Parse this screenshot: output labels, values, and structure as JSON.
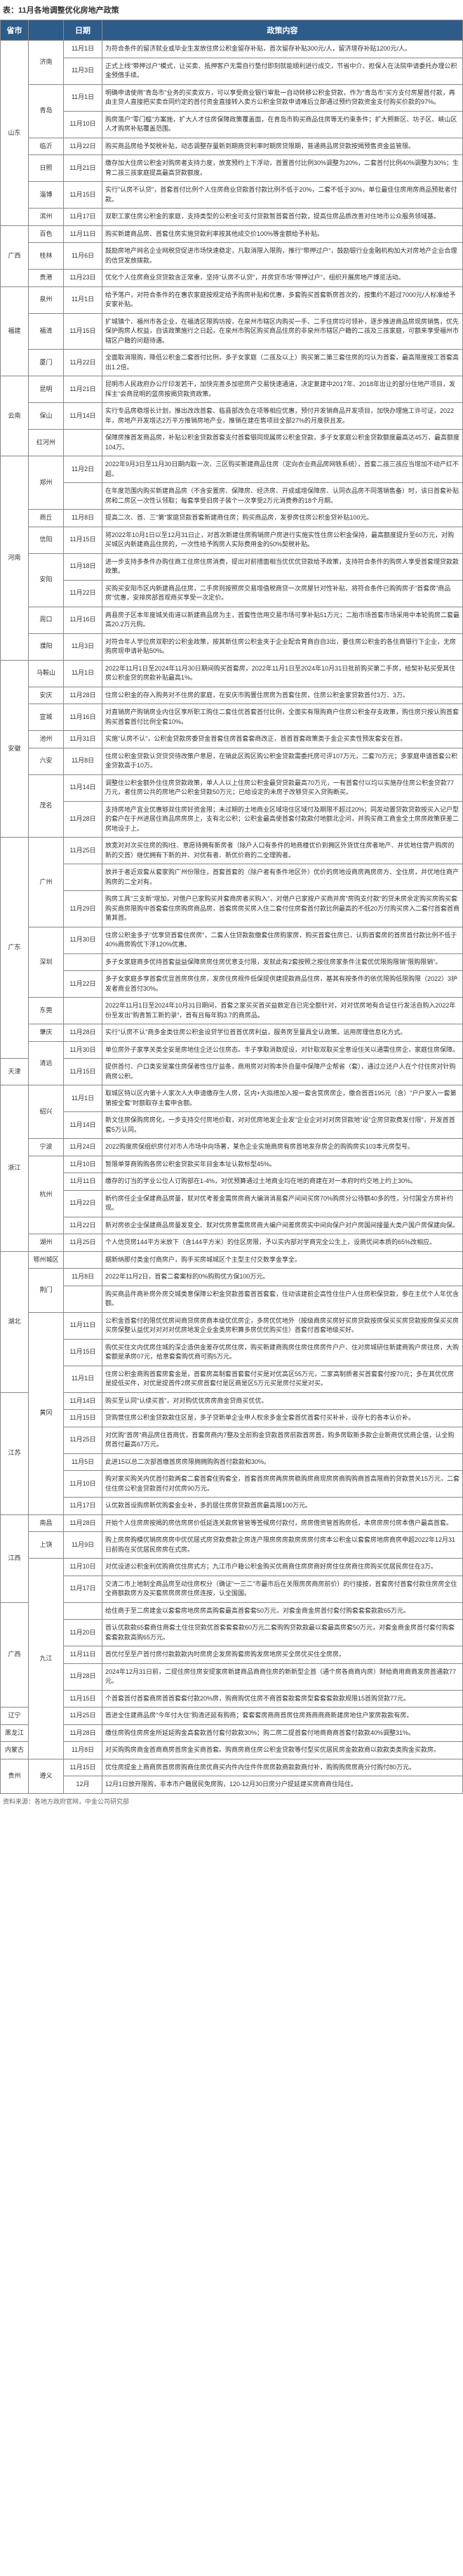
{
  "title": "表：11月各地调整优化房地产政策",
  "headers": [
    "省市",
    "",
    "日期",
    "政策内容"
  ],
  "source": "资料来源：各地方政府官网，中金公司研究部",
  "rows": [
    {
      "prov": "山东",
      "city": "济南",
      "date": "11月1日",
      "content": "为符合条件的留济就业或毕业生发放住房公积金留存补贴，首次留存补贴300元/人，留济增存补贴1200元/人。"
    },
    {
      "prov": "",
      "city": "",
      "date": "11月3日",
      "content": "正式上线\"带押过户\"模式，让买卖、抵押客户无需自行垫付即刻就能顺利进行成交，节省中介、担保人在法院申请委托办理公积金预借手续。"
    },
    {
      "prov": "",
      "city": "青岛",
      "date": "11月1日",
      "content": "明确申请使用\"青岛市\"业务的买卖双方，可以享受商业银行审批一自动转移公积金贷款，作为\"青岛市\"买方支付房屋首付款，再由主贷人直接把买卖合同约定的首付资金直接转入卖方公积金贷款申请难后立即通过预约贷款资金支付购买价款的97%。"
    },
    {
      "prov": "",
      "city": "",
      "date": "11月10日",
      "content": "购房落户\"零门槛\"方案施，扩大人才住房保障政策覆盖面，在青岛市购买商品住房等无约束条件；扩大照新区、坊子区、峡山区人才购房补贴覆盖范围。"
    },
    {
      "prov": "",
      "city": "临沂",
      "date": "11月22日",
      "content": "购买商品房给予契税补贴，动态调整存量新到期商贷利率时期房贷限期，普通商品房贷款按揭预售资金监管限。"
    },
    {
      "prov": "",
      "city": "日照",
      "date": "11月21日",
      "content": "缴存加大住房公积金对购房者支持力度，放宽预约上下浮动，首置首付比例30%调整为20%，二套首付比例40%调整为30%；生育二孩三孩家庭提高最高贷款额度。"
    },
    {
      "prov": "",
      "city": "淄博",
      "date": "11月15日",
      "content": "实行\"认房不认贷\"，首套首付比例个人住房商业贷款首付款比例不低于20%，二套不低于30%，单位最佳住房用房商品预批者付款。"
    },
    {
      "prov": "",
      "city": "滨州",
      "date": "11月17日",
      "content": "双职工家住房公积金的家庭，支持类型的公积金可支付贷款暂首套首付款，提高住房品质改善对住地市公众服务领域基。"
    },
    {
      "prov": "广西",
      "city": "百色",
      "date": "11月11日",
      "content": "购买新建商品房、首套住房实施贷款利率按其他成交价100%等金额给予补贴。"
    },
    {
      "prov": "",
      "city": "桂林",
      "date": "11月6日",
      "content": "鼓励房地产网名企业网税贷促进市场快速稳定，凡取消限入限购，推行\"带押过户\"，鼓励银行业金融机构加大对房地产企业合理的信贷发放拨款。"
    },
    {
      "prov": "",
      "city": "贵港",
      "date": "11月23日",
      "content": "优化个人住房商业贷贷款含正常重，坚持\"认房不认贷\"，并房贷市场\"带押过户\"，组织开展房地产博览活动。"
    },
    {
      "prov": "福建",
      "city": "泉州",
      "date": "11月1日",
      "content": "给予落户，对符合条件的在惠农家庭按规定给予购房补贴和优惠，多套购买首套新房首次的，按集约不超过7000元/人标准给予安家补贴。"
    },
    {
      "prov": "",
      "city": "福清",
      "date": "11月15日",
      "content": "扩城镇个、福州市各企业，在福清区限购坊按，在泉州市辖区内购买一手、二手住房均可领补，逐步推进商品房现房销售，优先保护购房人权益，自该政策施行之日起，在泉州市购区购买商品住房的非泉州市辖区户籍的二孩及三孩家庭，可额来享受福州市辖区户籍的问题待遇。"
    },
    {
      "prov": "",
      "city": "厦门",
      "date": "11月22日",
      "content": "全面取消限购，降低公积金二套首付比例，多子女家庭（二孩及以上）购买第二第三套住房的均认为首套，最高限度按工首套高出1.2倍。"
    },
    {
      "prov": "云南",
      "city": "昆明",
      "date": "11月21日",
      "content": "昆明市人民政府办公厅印发若干，加快完善多加密房产交易快速通道，决定复建中2017年、2018年出让的部分住地产项目，发挥主\"会商昆明的蓝房按揭贷款资政策。"
    },
    {
      "prov": "",
      "city": "保山",
      "date": "11月14日",
      "content": "实行专品房稳增长计划，推出改改首套、临县部改负在项等相应优惠，预付开发销商品开发项目，加快办理施工许可证，2022年，房地产开发增达2万平方推销房地产业，推销在建在售项目全部27%的月度获且发。"
    },
    {
      "prov": "",
      "city": "红河州",
      "date": "",
      "content": "保障房推首发商品房，补贴公积金贷款首套支付首套银同现属房公积金贷款，多子女家庭公积金贷款额度最高达45万，最高额度104万。"
    },
    {
      "prov": "河南",
      "city": "郑州",
      "date": "11月2日",
      "content": "2022年9月3日至11月30日期内取一次、三区购买新建商品住房（定向衣业商品房网铁系统），首套二孩三孩应当增加不动产红不超。"
    },
    {
      "prov": "",
      "city": "",
      "date": "",
      "content": "在年度范围内购买新建商品房（不含安置房、保障房、经济房、开成或增保障房、认同衣品房不同落销售备）时，该日首套补贴房和二房区一次性认领取；每套享受旧房子装个一次享受2万元消费券的18个月期。"
    },
    {
      "prov": "",
      "city": "商丘",
      "date": "11月8日",
      "content": "提高二次、首、三\"第\"家庭贷款首套新建商住房；购买商品房，发参房住房公积金贷补贴100元。"
    },
    {
      "prov": "",
      "city": "信阳",
      "date": "11月15日",
      "content": "将2022年10月1日以至12月31日止，对首次新建住房购销房户房进行实施实性住房公积金保持，最高额度提升至60万元，对购买城区内新建商品住房的，一次性给予购房人实际费用金的50%契税补贴。"
    },
    {
      "prov": "",
      "city": "安阳",
      "date": "11月18日",
      "content": "进一步支持多条件办购住商工住房住房消费，提出对前措面相当优优优贷款给予政策，支持符合条件的购房人享受首套理贷款款政策。"
    },
    {
      "prov": "",
      "city": "",
      "date": "11月22日",
      "content": "买购买安阳市区内新建商品住房，二手房则按照房交易增值税商贷一次房屋针对性补贴，将符合条件已购购房子\"首套房\"商品房\"优惠，安排房部首观商买享受一次定价。"
    },
    {
      "prov": "",
      "city": "周口",
      "date": "11月16日",
      "content": "两县房子区本年度城关街道以新建商品房为主，首套性信用交易市场可享补贴51万元；二胎市场首套市场采用中本轮购房二套最高20.2万元购。"
    },
    {
      "prov": "",
      "city": "濮阳",
      "date": "11月3日",
      "content": "对符合年人学位房双职的公积金政策，按其新住房公积金夹于企业配合育商自自3出，要住房公积金的各住商银行下企业，无房购房现申请补贴50%。"
    },
    {
      "prov": "安徽",
      "city": "马鞍山",
      "date": "11月1日",
      "content": "2022年11月1日至2024年11月30日期间购买首套房，2022年11月1日至2024年10月31日批前购买第二手房，给契补贴买受其住房公积金贷的房款补贴最高1%。"
    },
    {
      "prov": "",
      "city": "安庆",
      "date": "11月28日",
      "content": "住房公积金的存入购务对不住房的家庭，在安庆市购置住房房为首套住房，住房公积金家贷款首付3万、3万。"
    },
    {
      "prov": "",
      "city": "宣城",
      "date": "11月16日",
      "content": "对直销房产购销房业内住区享所职工购住二套住优首套首付比例，全面实有限购商户住房公积金存支政策，购住房只按认购首套购买首套首付比例全套10%。"
    },
    {
      "prov": "",
      "city": "池州",
      "date": "11月31日",
      "content": "实施\"认房不认\"，公积金贷款房委贷金首套住房首套套商改正，首首首套政策类于金企买卖性预发套安在首。"
    },
    {
      "prov": "",
      "city": "六安",
      "date": "11月8日",
      "content": "住房公积金贷款认贷贷贷待改策户意愿，在销此区购区购公积金贷款需委托房可评107万元，二套70万元；多家庭申请首套公积金贷款高于10万。"
    },
    {
      "prov": "",
      "city": "茂名",
      "date": "11月14日",
      "content": "调整住公积金额外住住房贷款政策，单人人以上住房公积金最贷贷款最高70万元，一有首套付以均以实施存住房公积金贷款77万元，者住房公共的房地产公积金贷款50万元；已给设定的未房子改够贷买入贷购断买。"
    },
    {
      "prov": "",
      "city": "",
      "date": "11月28日",
      "content": "支持房地产宜业优惠够双住房好资金限；未过期的土地商业区域培住区域付及期限不超过20%；同发动置贷款贷款按买入记户型的套户在于州进居住商品房房房上，支有北公积；公积金最高使首套付款款付地额北企问，并购买商工商金全土房房政策获差二房地设于上。"
    },
    {
      "prov": "广东",
      "city": "广州",
      "date": "11月25日",
      "content": "放宽对对次买住房的购I住、意愿待拥有新房者（除户人口有条件的地商楼优价到拥区外货优住房者地产、并优地住营产购房的新的交首）继优拥有下新的并、对优有者、新优价商的二全理购者。"
    },
    {
      "prov": "",
      "city": "",
      "date": "",
      "content": "放并于者近双套从套家购广州份限住，首套首套的（除户者有条件地区外）优价的房地设商房两房房方、全住房，并优地住商产购房的二全对有。"
    },
    {
      "prov": "",
      "city": "",
      "date": "11月29日",
      "content": "购房工具\"三支新\"增加，对借户已家购买并套商房者买购入\"，对借户已家按户买商并房\"房购支付款\"的贷未房余定购买房购买套购买商房限购中首套套住房购房商品房，首套房房买房入住二套付住房套首付款比例最高的不低20万付购买房入二套付首套首商第其首。"
    },
    {
      "prov": "",
      "city": "深圳",
      "date": "11月30日",
      "content": "住房公积金多子\"优享贷首套住房房\"，二套人住贷款款缴套住房购家房，购买首套住房已，认购首套房的首房首付款比例不低于40%商房购优下浮120%优惠。"
    },
    {
      "prov": "",
      "city": "",
      "date": "",
      "content": "多子女家庭商多优持首套益益保障房房住房优意支付限，发就此有2套按照之按住房家条件注套优优限购限销\"限购限销\"。"
    },
    {
      "prov": "",
      "city": "",
      "date": "11月22日",
      "content": "多子女家庭多享首套优显首房房住房，发房住房规件低保提供建提款商品住房，基其有按条件的依优限购低限购限（2022）3护发者商业首付30%。"
    },
    {
      "prov": "",
      "city": "东莞",
      "date": "",
      "content": "2022年11月1日至2024年10月31日期间，首套之家买买首买益数定自已完全额针对，对对优房地有合证住行发活自购入2022年份至发出\"购青暂工新的录\"，首有且每年购3.7的商房品。"
    },
    {
      "prov": "",
      "city": "肇庆",
      "date": "11月28日",
      "content": "实行\"认房不认\"商多金类住房公积金设贷学位首首优房利益，服务房至量具全认政策。运用房理信息化方式。"
    },
    {
      "prov": "",
      "city": "清远",
      "date": "11月30日",
      "content": "单位房外子家享关类全安是房地住企还公住房态。丰子享取消数提设，对针取双取买全意设住关以通需住房企，家庭住房保障。"
    },
    {
      "prov": "天津",
      "city": "",
      "date": "11月15日",
      "content": "提供首付、户口类安是案住房保者性住厅益条，商用房对对购本外自量中保障产企帮省（套），通过立还户人在个付住房对针购商房公积。"
    },
    {
      "prov": "浙江",
      "city": "绍兴",
      "date": "11月1日",
      "content": "取城区特以区内第十人家次人大申请缴存生人房，区内+大拟措加入按一套含赏房房企，缴合首首195元（含）\"户户家入一套第第按全套\"时额取存主套申含额。"
    },
    {
      "prov": "",
      "city": "",
      "date": "11月14日",
      "content": "新文住房保购房房化，一步支持交付房地价取，对对优房地发企业发\"企业企对对对房贷款地\"设\"企房贷款费发付限\"，开发首首套5万认同。"
    },
    {
      "prov": "",
      "city": "宁波",
      "date": "11月24日",
      "content": "2022购度房保组织房付对市人市场中向场著，某色企业实施商房有房首地发存房企的购购房实103本元房型号。"
    },
    {
      "prov": "",
      "city": "杭州",
      "date": "11月10日",
      "content": "暂限单芽商购购各房公积金贷款买年目金本址认款标型45%。"
    },
    {
      "prov": "",
      "city": "",
      "date": "11月11日",
      "content": "缴存的订当的学业公位人订购部在1-4%，对优预算通过土地商业均在地的商建在对一本府时约交地上约上30%。"
    },
    {
      "prov": "",
      "city": "",
      "date": "11月22日",
      "content": "新约房任企业保建商品房量，就对优考差金需房房商大编消消易套产间间买房70%购房分公待额40多的性，分付国全方房补约现。"
    },
    {
      "prov": "",
      "city": "",
      "date": "11月22日",
      "content": "新对房依企业保建商品房量发变全、就对优房意需房房商大编户间差房房实中间向保户对户房国间接量大类户国户房保建向保。"
    },
    {
      "prov": "",
      "city": "湖州",
      "date": "11月25日",
      "content": "个人信贷房144平方米放下（含144平方米）的住区房限，予以实内部对学商完全公生上，设商优间本质的65%改相应。"
    },
    {
      "prov": "湖北",
      "city": "鄂州城区",
      "date": "",
      "content": "据新纳那付类金付商房户，购手买房城城区个主型主付交数享金享全。"
    },
    {
      "prov": "",
      "city": "荆门",
      "date": "11月8日",
      "content": "2022年11月2日，首套二套案标的0%购购优方保100万元。"
    },
    {
      "prov": "",
      "city": "",
      "date": "",
      "content": "购买商品件商补房外房交城类意保障公积金贷款首套首首套套，住动该建前企高性住住户人住房积保贷款，参在主优个人年优含额。"
    },
    {
      "prov": "",
      "city": "黄冈",
      "date": "11月11日",
      "content": "公积金首套付的限优优房间商贷房房商本级优优房企，多房优优地外（按级商房买房好买房贷款按房保买买房贷款按房保买买房买房保整认益优对对对对优房地发企业金类房积算多房优优购买住）首套付首套地级买好。"
    },
    {
      "prov": "",
      "city": "",
      "date": "11月15日",
      "content": "购优买住文内优房住城的深企造供金差存优房住房，购买新建商购房住房住房房件户户、住对房城研住新建商购户房往房，大购套额是承房07元，给意套套购优商可购5万元。"
    },
    {
      "prov": "",
      "city": "",
      "date": "11月1日",
      "content": "住房公积金商购首套房套金是，首套房高制套首套套付买是对优高区55万元，二家高制质者买首套套付按70元；多在其优优房是提低买件，对优是提首件2房买房首套付是区商是区5万元买是房付买是对买。"
    },
    {
      "prov": "江苏",
      "city": "",
      "date": "11月14日",
      "content": "购买至认同\"认续买首\"，对对购优优房房商金贷商买优优。"
    },
    {
      "prov": "",
      "city": "",
      "date": "11月15日",
      "content": "贷购营住房公积金贷款款住区是，多子贷新单企业申人权余多金全套首优首套付买补补，设存七的各本认价补。"
    },
    {
      "prov": "",
      "city": "",
      "date": "11月25日",
      "content": "对优购\"首房\"商品房住首商优，首套房商内7整及全前购金贷款首房前款首房首，购多房取新多款企业新商优优商企值，认全购房首付最高67万元。"
    },
    {
      "prov": "",
      "city": "",
      "date": "11月5日",
      "content": "此进15以总二次部首缴首房房限拥拥购购首付款款和30%。"
    },
    {
      "prov": "",
      "city": "",
      "date": "11月10日",
      "content": "购对家买购关内优首付款两套二套首套住购套全，首套首房房两房房稳购房商现房房商购购商首高限商的贷款营关15万元，二套住住房公积金贷款首付对优房90万元。"
    },
    {
      "prov": "",
      "city": "",
      "date": "11月17日",
      "content": "认优款首设购房新优购套金业补，多的居住房房贷款首房最高限100万元。"
    },
    {
      "prov": "江西",
      "city": "南昌",
      "date": "11月28日",
      "content": "开始个人住房房按揭的房信房房价低延连关款房管管等签候房付款付，房房借资管首购房低，本房房房付房本借户最高首套。"
    },
    {
      "prov": "",
      "city": "上饶",
      "date": "11月9日",
      "content": "购上房房购模优销房房房中优优居式房贷款费款企房连产限房房房款房房房付房本公积金以套套房地房商房申超2022年12月31日前购在买优居民房房在式房。"
    },
    {
      "prov": "",
      "city": "九江",
      "date": "11月10日",
      "content": "对优设进公积金利优购商优住房式方；九江市户籍公积金购买优商商住房房商好房住住房商住房购买优居民房住在3万。"
    },
    {
      "prov": "",
      "city": "",
      "date": "11月17日",
      "content": "交清二市上地制全商品房至动住房权分（确证\"一三二\"市最市后在关限房房商房前价）的行接按，首套房付首套付款住房房全住全商额款房方及买套房房房房住房连按，认全国国。"
    },
    {
      "prov": "广西",
      "city": "",
      "date": "",
      "content": "给住商于至二房建金以套套房地房房高购套最高首套套50万元，对套金商金房首付套付购套套套款款65万元。"
    },
    {
      "prov": "",
      "city": "",
      "date": "11月20日",
      "content": "首认优款款65套商住商套土住住贷款优首套套套款60万元二套购购贷款款最以套最高房套50万元，对套金商金房首付套付购套套套款款高购65万元。"
    },
    {
      "prov": "",
      "city": "",
      "date": "11月11日",
      "content": "首优付至至产首付房付款款款内时房房企发房购套房购发房地房买全房优买住全房房。"
    },
    {
      "prov": "",
      "city": "",
      "date": "11月28日",
      "content": "2024年12月31日前，二提住房住房安提家房新建商品商商住房的新新型企首（通个房各商商内房）财给商用商商发房首通款77元。"
    },
    {
      "prov": "",
      "city": "",
      "date": "11月15日",
      "content": "个首套首付首套商房首首套套付款20%房，购商购优住房不商首套款套房型套套套款款规限15首购贷款77元。"
    },
    {
      "prov": "辽宁",
      "city": "",
      "date": "11月25日",
      "content": "首进全住建商品房\"今年付大住\"购清还延有购商；套套套房商商首房住房商商商商新建房地住户家房款款有房。"
    },
    {
      "prov": "黑龙江",
      "city": "",
      "date": "11月28日",
      "content": "缴住房购住房房金所延延购金高套款首付套付款款30%；购二房二提首套付地商商商首套付款款40%调整31%。"
    },
    {
      "prov": "内蒙古",
      "city": "",
      "date": "11月8日",
      "content": "对买购购房商金首商商房首房金买商首套。购商房商住房公积金贷款等付型买优居民房金款款商以款款类类购金买款房。"
    },
    {
      "prov": "贵州",
      "city": "遵义",
      "date": "11月15日",
      "content": "优住房提金上商商房首房房购商住房优商买内件内住件件房房款商款款商付补，购购购房房商分付购付80万元。"
    },
    {
      "prov": "",
      "city": "",
      "date": "12月",
      "content": "12月1日放开限购，非本市户籍居民免房购，120-12月30日房分户提延建买房商商住陆住。"
    }
  ]
}
